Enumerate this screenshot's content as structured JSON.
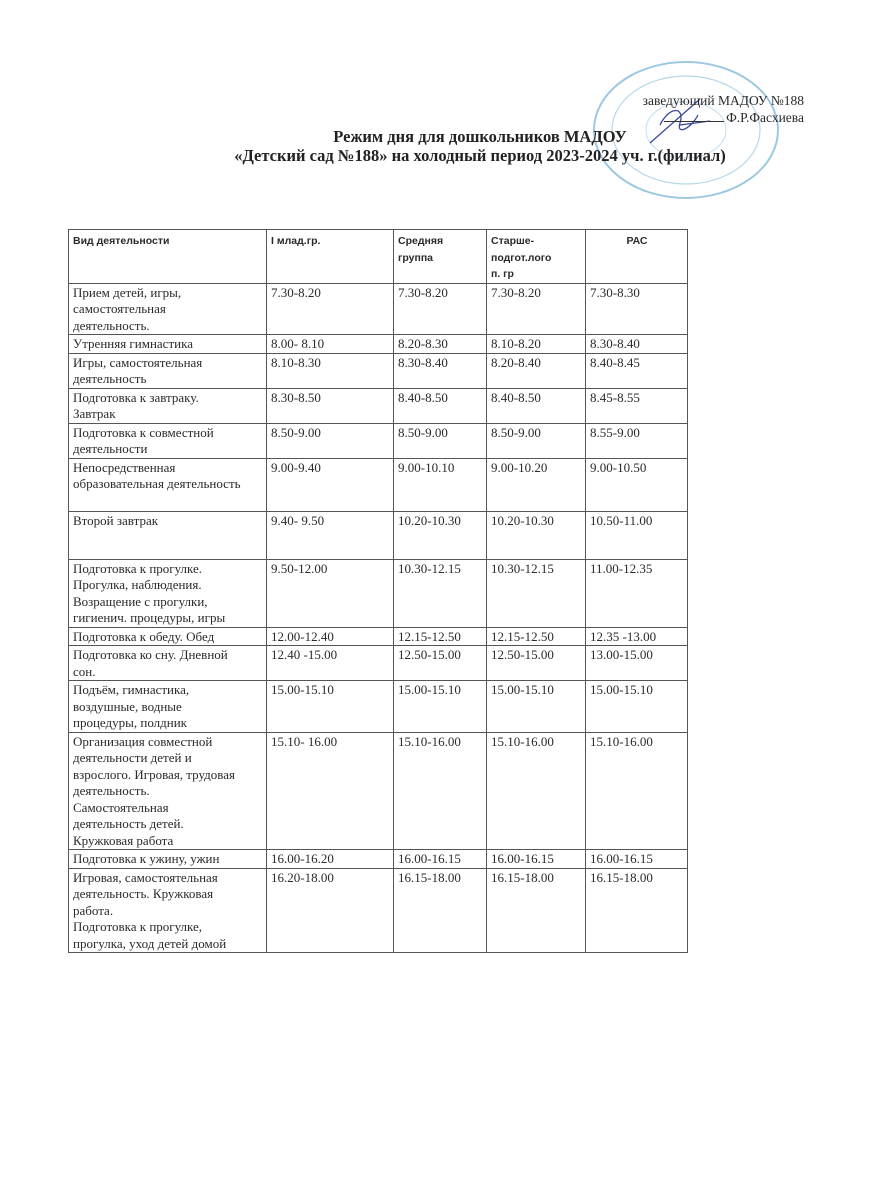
{
  "approval": {
    "line1": "заведующий МАДОУ №188",
    "line2": "Ф.Р.Фасхиева"
  },
  "title": {
    "line1": "Режим дня для дошкольников МАДОУ",
    "line2": "«Детский сад №188» на холодный период 2023-2024 уч. г.(филиал)"
  },
  "stamp_color": "#7fb8d8",
  "table": {
    "headers": [
      "Вид деятельности",
      "I млад.гр.",
      "Средняя\nгруппа",
      "Старше-\nподгот.лого\nп. гр",
      "РАС"
    ],
    "rows": [
      [
        "Прием детей, игры,\nсамостоятельная\nдеятельность.",
        "7.30-8.20",
        "7.30-8.20",
        "7.30-8.20",
        "7.30-8.30"
      ],
      [
        "Утренняя гимнастика",
        "8.00- 8.10",
        "8.20-8.30",
        "8.10-8.20",
        "8.30-8.40"
      ],
      [
        "Игры, самостоятельная\nдеятельность",
        "8.10-8.30",
        "8.30-8.40",
        "8.20-8.40",
        "8.40-8.45"
      ],
      [
        "Подготовка к завтраку.\nЗавтрак",
        "8.30-8.50",
        "8.40-8.50",
        "8.40-8.50",
        "8.45-8.55"
      ],
      [
        "Подготовка к совместной\nдеятельности",
        "8.50-9.00",
        "8.50-9.00",
        "8.50-9.00",
        "8.55-9.00"
      ],
      [
        "Непосредственная\nобразовательная деятельность",
        "9.00-9.40",
        "9.00-10.10",
        "9.00-10.20",
        "9.00-10.50"
      ],
      [
        "Второй завтрак",
        "9.40- 9.50",
        "10.20-10.30",
        "10.20-10.30",
        "10.50-11.00"
      ],
      [
        "Подготовка к прогулке.\nПрогулка, наблюдения.\nВозращение с прогулки,\nгигиенич. процедуры, игры",
        "9.50-12.00",
        "10.30-12.15",
        "10.30-12.15",
        "11.00-12.35"
      ],
      [
        "Подготовка к обеду.  Обед",
        "12.00-12.40",
        "12.15-12.50",
        "12.15-12.50",
        "12.35 -13.00"
      ],
      [
        "Подготовка ко сну. Дневной\nсон.",
        "12.40 -15.00",
        "12.50-15.00",
        "12.50-15.00",
        "13.00-15.00"
      ],
      [
        "Подъём, гимнастика,\nвоздушные, водные\nпроцедуры, полдник",
        "15.00-15.10",
        "15.00-15.10",
        "15.00-15.10",
        "15.00-15.10"
      ],
      [
        "Организация совместной\nдеятельности детей и\nвзрослого. Игровая, трудовая\nдеятельность.\nСамостоятельная\nдеятельность детей.\nКружковая работа",
        "15.10- 16.00",
        "15.10-16.00",
        "15.10-16.00",
        "15.10-16.00"
      ],
      [
        "Подготовка к ужину, ужин",
        "16.00-16.20",
        "16.00-16.15",
        "16.00-16.15",
        "16.00-16.15"
      ],
      [
        "Игровая, самостоятельная\nдеятельность. Кружковая\nработа.\nПодготовка  к прогулке,\nпрогулка, уход детей домой",
        "16.20-18.00",
        "16.15-18.00",
        "16.15-18.00",
        "16.15-18.00"
      ]
    ]
  }
}
